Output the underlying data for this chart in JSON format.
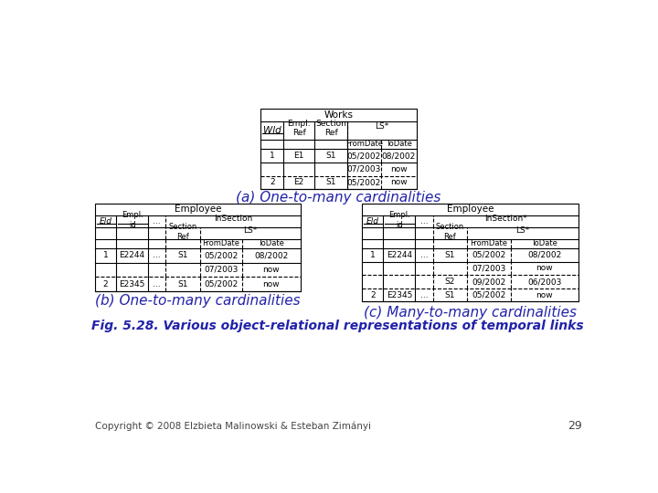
{
  "bg_color": "#ffffff",
  "text_color_blue": "#2222aa",
  "text_color_black": "#000000",
  "text_color_gray": "#444444",
  "caption_a": "(a) One-to-many cardinalities",
  "caption_b": "(b) One-to-many cardinalities",
  "caption_c": "(c) Many-to-many cardinalities",
  "fig_caption": "Fig. 5.28. Various object-relational representations of temporal links",
  "copyright": "Copyright © 2008 Elzbieta Malinowski & Esteban Zimányi",
  "page_num": "29"
}
